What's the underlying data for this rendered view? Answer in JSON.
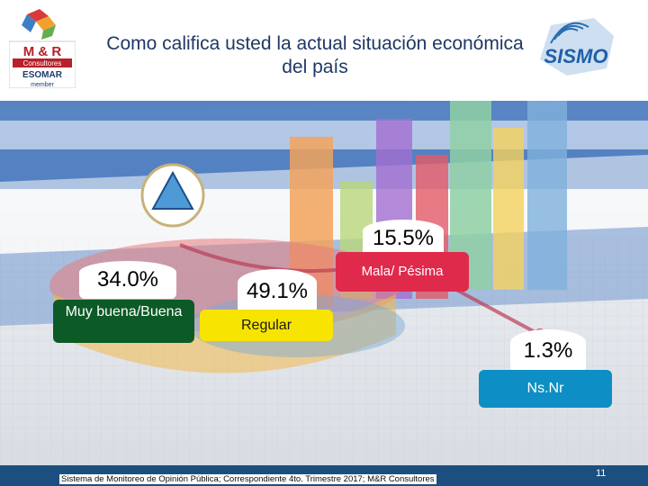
{
  "title": "Como califica usted la actual situación económica del país",
  "logos": {
    "mr": {
      "line1": "M & R",
      "line2": "Consultores",
      "line3": "ESOMAR",
      "line4": "member"
    },
    "sismo": {
      "text": "SISMO"
    }
  },
  "footer": {
    "text": "Sistema de Monitoreo de Opinión Pública; Correspondiente 4to. Trimestre 2017; M&R Consultores",
    "page": "11"
  },
  "colors": {
    "title": "#1f3864",
    "muy_buena": "#0c5a26",
    "regular": "#f7e400",
    "mala": "#e02a4c",
    "nsnr": "#0d8ec4",
    "footer_bar": "#1c4f80"
  },
  "chart_data": {
    "type": "pie",
    "title": "Como califica usted la actual situación económica del país",
    "categories": [
      "Muy buena/Buena",
      "Regular",
      "Mala/ Pésima",
      "Ns.Nr"
    ],
    "values": [
      34.0,
      49.1,
      15.5,
      1.3
    ],
    "value_labels": [
      "34.0%",
      "49.1%",
      "15.5%",
      "1.3%"
    ],
    "legend": "none"
  }
}
